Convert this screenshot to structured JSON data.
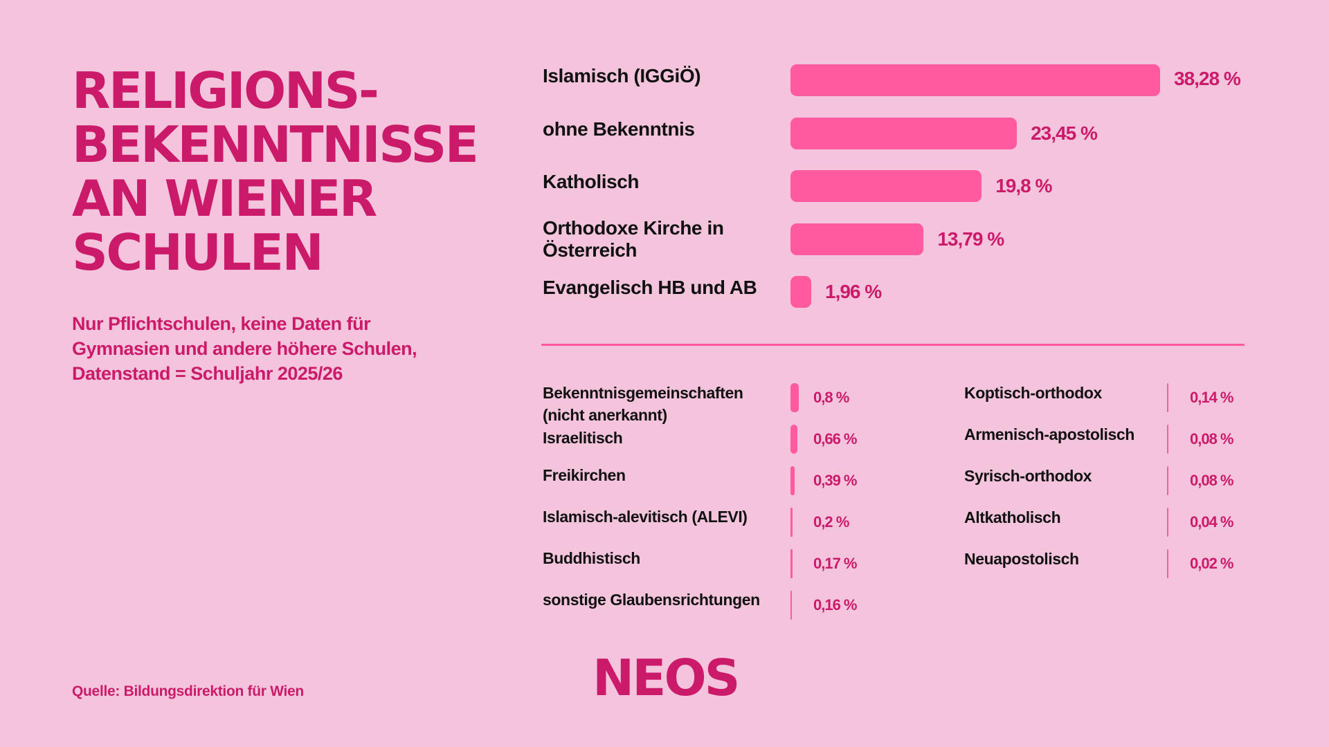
{
  "header": {
    "title": "RELIGIONS-\nBEKENNTNISSE\nAN WIENER\nSCHULEN",
    "subtitle": "Nur Pflichtschulen, keine Daten für\nGymnasien und andere höhere Schulen,\nDatenstand = Schuljahr 2025/26"
  },
  "footer": {
    "source": "Quelle: Bildungsdirektion für Wien",
    "brand": "NEOS"
  },
  "colors": {
    "background": "#f4c4dd",
    "accent": "#cc1a6b",
    "bar": "#ff5aa0",
    "text": "#111111"
  },
  "chart_data": [
    {
      "type": "bar",
      "orientation": "horizontal",
      "categories": [
        "Islamisch (IGGiÖ)",
        "ohne Bekenntnis",
        "Katholisch",
        "Orthodoxe Kirche in\nÖsterreich",
        "Evangelisch HB und AB"
      ],
      "values": [
        38.28,
        23.45,
        19.8,
        13.79,
        1.96
      ],
      "value_labels": [
        "38,28 %",
        "23,45 %",
        "19,8 %",
        "13,79 %",
        "1,96 %"
      ],
      "xlim": [
        0,
        38.28
      ]
    },
    {
      "type": "bar",
      "orientation": "horizontal",
      "columns": [
        {
          "categories": [
            "Bekenntnisgemeinschaften\n(nicht anerkannt)",
            "Israelitisch",
            "Freikirchen",
            "Islamisch-alevitisch (ALEVI)",
            "Buddhistisch",
            "sonstige Glaubensrichtungen"
          ],
          "values": [
            0.8,
            0.66,
            0.39,
            0.2,
            0.17,
            0.16
          ],
          "value_labels": [
            "0,8 %",
            "0,66 %",
            "0,39 %",
            "0,2 %",
            "0,17 %",
            "0,16 %"
          ]
        },
        {
          "categories": [
            "Koptisch-orthodox",
            "Armenisch-apostolisch",
            "Syrisch-orthodox",
            "Altkatholisch",
            "Neuapostolisch"
          ],
          "values": [
            0.14,
            0.08,
            0.08,
            0.04,
            0.02
          ],
          "value_labels": [
            "0,14 %",
            "0,08 %",
            "0,08 %",
            "0,04 %",
            "0,02 %"
          ]
        }
      ],
      "xlim": [
        0,
        0.8
      ]
    }
  ]
}
